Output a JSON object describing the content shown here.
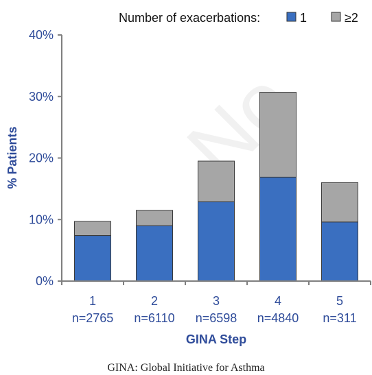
{
  "watermark": "No",
  "caption": "GINA: Global Initiative for Asthma",
  "legend": {
    "title": "Number of exacerbations:",
    "items": [
      "1",
      "≥2"
    ]
  },
  "colors": {
    "series_1": "#3a6fc0",
    "series_2": "#a6a6a6",
    "axis": "#7f7f7f",
    "text_blue": "#2f4c9a"
  },
  "chart_data": {
    "type": "bar",
    "stacked": true,
    "xlabel": "GINA Step",
    "ylabel": "% Patients",
    "ylim": [
      0,
      40
    ],
    "yticks": [
      "0%",
      "10%",
      "20%",
      "30%",
      "40%"
    ],
    "categories": [
      "1",
      "2",
      "3",
      "4",
      "5"
    ],
    "category_sublabels": [
      "n=2765",
      "n=6110",
      "n=6598",
      "n=4840",
      "n=311"
    ],
    "grid": false,
    "legend_position": "top-right",
    "series": [
      {
        "name": "1",
        "values": [
          7.4,
          9.0,
          12.9,
          16.9,
          9.6
        ]
      },
      {
        "name": "≥2",
        "values": [
          2.3,
          2.5,
          6.6,
          13.8,
          6.4
        ]
      }
    ]
  }
}
